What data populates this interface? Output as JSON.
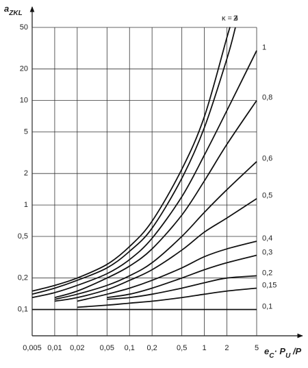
{
  "chart_data": {
    "type": "line",
    "ylabel": {
      "main": "a",
      "sub": "ZKL"
    },
    "xlabel": [
      {
        "text": "e"
      },
      {
        "text": "C",
        "sub": true
      },
      {
        "text": "· P"
      },
      {
        "text": "U",
        "sub": true
      },
      {
        "text": " /P"
      }
    ],
    "log_x": true,
    "log_y": true,
    "grid": true,
    "color": "#111111",
    "xlim": [
      0.005,
      5
    ],
    "ylim": [
      0.056,
      50
    ],
    "xticks": [
      {
        "value": 0.005,
        "label": "0,005"
      },
      {
        "value": 0.01,
        "label": "0,01"
      },
      {
        "value": 0.02,
        "label": "0,02"
      },
      {
        "value": 0.05,
        "label": "0,05"
      },
      {
        "value": 0.1,
        "label": "0,1"
      },
      {
        "value": 0.2,
        "label": "0,2"
      },
      {
        "value": 0.5,
        "label": "0,5"
      },
      1,
      2,
      5
    ],
    "yticks": [
      {
        "value": 0.1,
        "label": "0,1"
      },
      {
        "value": 0.2,
        "label": "0,2"
      },
      {
        "value": 0.5,
        "label": "0,5"
      },
      1,
      2,
      5,
      10,
      20,
      50
    ],
    "series": [
      {
        "name": "κ = 4",
        "x": [
          0.005,
          0.01,
          0.02,
          0.05,
          0.1,
          0.2,
          0.5,
          1,
          2,
          2.2
        ],
        "values": [
          0.15,
          0.17,
          0.2,
          0.27,
          0.4,
          0.7,
          2.2,
          7,
          40,
          50
        ]
      },
      {
        "name": "2",
        "x": [
          0.005,
          0.01,
          0.02,
          0.05,
          0.1,
          0.2,
          0.5,
          1,
          2,
          2.6
        ],
        "values": [
          0.14,
          0.16,
          0.19,
          0.25,
          0.36,
          0.6,
          1.8,
          5.5,
          25,
          50
        ]
      },
      {
        "name": "1",
        "x": [
          0.005,
          0.01,
          0.02,
          0.05,
          0.1,
          0.2,
          0.5,
          1,
          2,
          5
        ],
        "values": [
          0.13,
          0.145,
          0.17,
          0.22,
          0.3,
          0.48,
          1.2,
          3,
          8,
          30
        ]
      },
      {
        "name": "0,8",
        "x": [
          0.01,
          0.02,
          0.05,
          0.1,
          0.2,
          0.5,
          1,
          2,
          5
        ],
        "values": [
          0.13,
          0.15,
          0.2,
          0.26,
          0.38,
          0.8,
          1.7,
          3.8,
          10
        ]
      },
      {
        "name": "0,6",
        "x": [
          0.01,
          0.02,
          0.05,
          0.1,
          0.2,
          0.5,
          1,
          2,
          5
        ],
        "values": [
          0.125,
          0.14,
          0.17,
          0.21,
          0.28,
          0.5,
          0.85,
          1.4,
          2.6
        ]
      },
      {
        "name": "0,5",
        "x": [
          0.01,
          0.02,
          0.05,
          0.1,
          0.2,
          0.5,
          1,
          2,
          5
        ],
        "values": [
          0.12,
          0.13,
          0.155,
          0.19,
          0.24,
          0.37,
          0.55,
          0.75,
          1.15
        ]
      },
      {
        "name": "0,4",
        "x": [
          0.02,
          0.05,
          0.1,
          0.2,
          0.5,
          1,
          2,
          5
        ],
        "values": [
          0.12,
          0.14,
          0.16,
          0.19,
          0.25,
          0.32,
          0.38,
          0.45
        ]
      },
      {
        "name": "0,3",
        "x": [
          0.05,
          0.1,
          0.2,
          0.5,
          1,
          2,
          5
        ],
        "values": [
          0.13,
          0.14,
          0.16,
          0.2,
          0.24,
          0.28,
          0.33
        ]
      },
      {
        "name": "0,2",
        "x": [
          0.05,
          0.1,
          0.2,
          0.5,
          1,
          2,
          5
        ],
        "values": [
          0.125,
          0.13,
          0.14,
          0.16,
          0.18,
          0.2,
          0.21
        ]
      },
      {
        "name": "0,15",
        "x": [
          0.02,
          0.05,
          0.1,
          0.2,
          0.5,
          1,
          2,
          5
        ],
        "values": [
          0.105,
          0.11,
          0.115,
          0.12,
          0.13,
          0.14,
          0.15,
          0.16
        ]
      },
      {
        "name": "0,1",
        "x": [
          0.005,
          5
        ],
        "values": [
          0.1,
          0.1
        ]
      }
    ]
  }
}
